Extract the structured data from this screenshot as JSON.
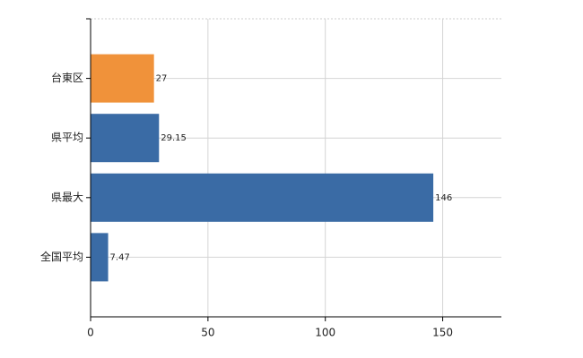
{
  "chart_data": {
    "type": "hbar",
    "categories": [
      "台東区",
      "県平均",
      "県最大",
      "全国平均"
    ],
    "values": [
      27,
      29.15,
      146,
      7.47
    ],
    "colors": [
      "#f0923a",
      "#3a6ba5",
      "#3a6ba5",
      "#3a6ba5"
    ],
    "xlim": [
      0,
      175
    ],
    "xticks": [
      0,
      50,
      100,
      150
    ],
    "grid": true
  }
}
